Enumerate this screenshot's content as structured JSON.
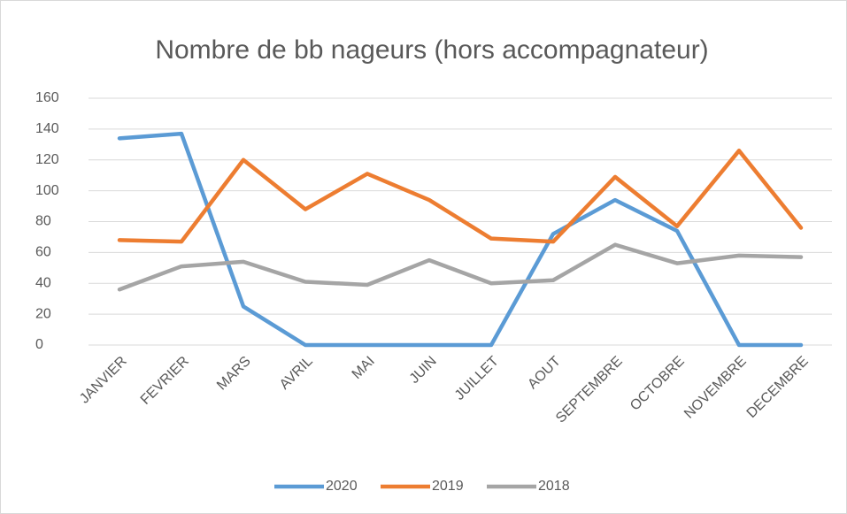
{
  "chart_data": {
    "type": "line",
    "title": "Nombre de bb nageurs (hors accompagnateur)",
    "categories": [
      "JANVIER",
      "FEVRIER",
      "MARS",
      "AVRIL",
      "MAI",
      "JUIN",
      "JUILLET",
      "AOUT",
      "SEPTEMBRE",
      "OCTOBRE",
      "NOVEMBRE",
      "DECEMBRE"
    ],
    "series": [
      {
        "name": "2020",
        "color": "#5b9bd5",
        "values": [
          134,
          137,
          25,
          0,
          0,
          0,
          0,
          72,
          94,
          74,
          0,
          0
        ]
      },
      {
        "name": "2019",
        "color": "#ed7d31",
        "values": [
          68,
          67,
          120,
          88,
          111,
          94,
          69,
          67,
          109,
          77,
          126,
          76
        ]
      },
      {
        "name": "2018",
        "color": "#a5a5a5",
        "values": [
          36,
          51,
          54,
          41,
          39,
          55,
          40,
          42,
          65,
          53,
          58,
          57
        ]
      }
    ],
    "ylim": [
      0,
      160
    ],
    "yticks": [
      0,
      20,
      40,
      60,
      80,
      100,
      120,
      140,
      160
    ],
    "grid": true,
    "legend": "bottom"
  }
}
